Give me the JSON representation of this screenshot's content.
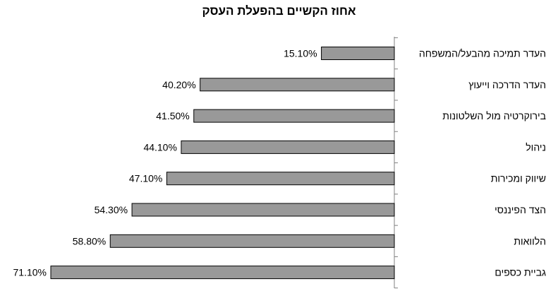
{
  "chart_data": {
    "type": "bar",
    "orientation": "horizontal",
    "title": "אחוז הקשיים בהפעלת העסק",
    "categories": [
      "העדר תמיכה מהבעל/המשפחה",
      "העדר הדרכה וייעוץ",
      "בירוקרטיה מול השלטונות",
      "ניהול",
      "שיווק ומכירות",
      "הצד הפיננסי",
      "הלוואות",
      "גביית כספים"
    ],
    "values": [
      15.1,
      40.2,
      41.5,
      44.1,
      47.1,
      54.3,
      58.8,
      71.1
    ],
    "value_labels": [
      "15.10%",
      "40.20%",
      "41.50%",
      "44.10%",
      "47.10%",
      "54.30%",
      "58.80%",
      "71.10%"
    ],
    "xlim": [
      0,
      71.1
    ],
    "axis_side": "right",
    "grid": false,
    "bar_color": "#999999"
  }
}
